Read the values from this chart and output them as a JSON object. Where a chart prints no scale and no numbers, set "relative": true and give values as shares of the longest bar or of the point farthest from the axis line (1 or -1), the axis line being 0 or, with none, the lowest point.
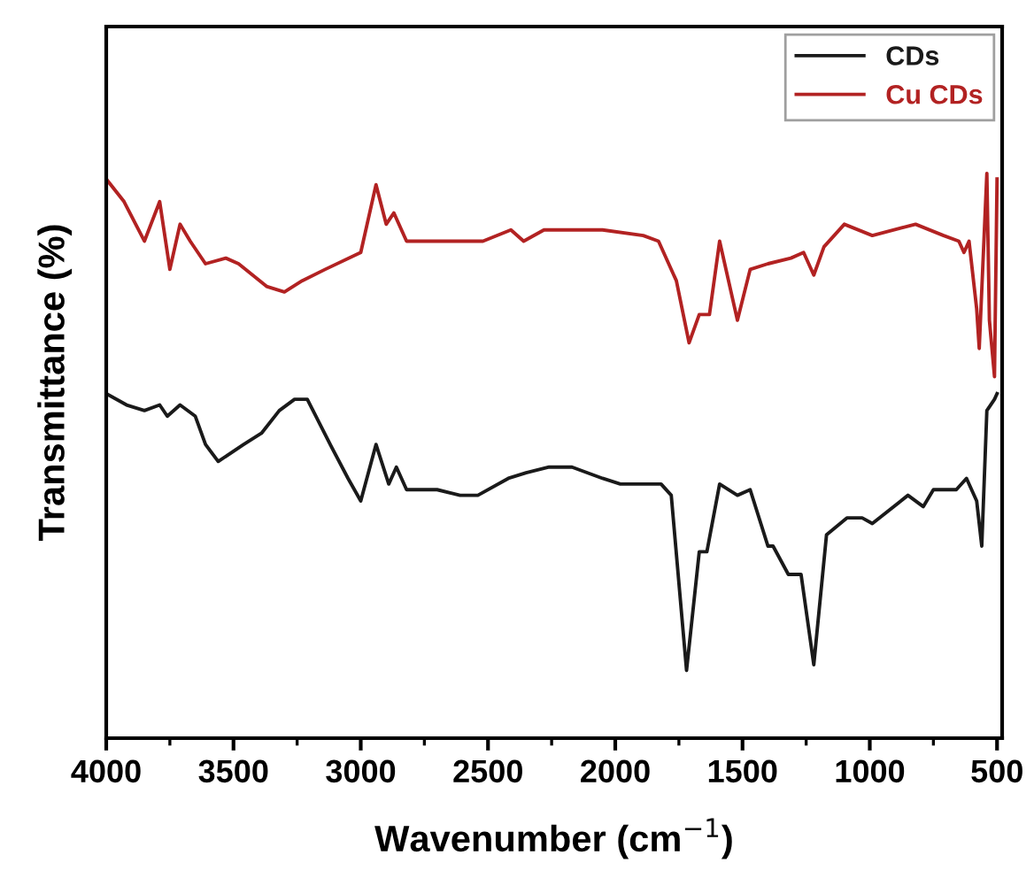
{
  "chart_data": {
    "type": "line",
    "relative": true,
    "xlabel": "Wavenumber (cm$^{−1}$)",
    "ylabel": "Transmittance (%)",
    "xlim": [
      4000,
      480
    ],
    "xticks": [
      4000,
      3500,
      3000,
      2500,
      2000,
      1500,
      1000,
      500
    ],
    "tick_labels": "x",
    "grid": false,
    "legend": "top right",
    "series": [
      {
        "name": "CDs",
        "color": "#1a1a1a",
        "x": [
          4000,
          3920,
          3850,
          3790,
          3760,
          3710,
          3650,
          3610,
          3560,
          3460,
          3390,
          3320,
          3260,
          3210,
          3120,
          3050,
          3000,
          2940,
          2890,
          2860,
          2820,
          2700,
          2610,
          2540,
          2420,
          2350,
          2260,
          2170,
          2050,
          1980,
          1820,
          1780,
          1720,
          1670,
          1640,
          1590,
          1520,
          1470,
          1400,
          1380,
          1320,
          1270,
          1220,
          1170,
          1090,
          1030,
          990,
          850,
          790,
          750,
          660,
          620,
          580,
          560,
          540,
          510,
          500
        ],
        "values": [
          0.61,
          0.59,
          0.58,
          0.59,
          0.57,
          0.59,
          0.57,
          0.52,
          0.49,
          0.52,
          0.54,
          0.58,
          0.6,
          0.6,
          0.52,
          0.46,
          0.42,
          0.52,
          0.45,
          0.48,
          0.44,
          0.44,
          0.43,
          0.43,
          0.46,
          0.47,
          0.48,
          0.48,
          0.46,
          0.45,
          0.45,
          0.43,
          0.12,
          0.33,
          0.33,
          0.45,
          0.43,
          0.44,
          0.34,
          0.34,
          0.29,
          0.29,
          0.13,
          0.36,
          0.39,
          0.39,
          0.38,
          0.43,
          0.41,
          0.44,
          0.44,
          0.46,
          0.42,
          0.34,
          0.58,
          0.6,
          0.61
        ]
      },
      {
        "name": "Cu CDs",
        "color": "#b22222",
        "x": [
          4000,
          3930,
          3850,
          3790,
          3750,
          3710,
          3670,
          3610,
          3530,
          3480,
          3370,
          3300,
          3230,
          3140,
          3000,
          2940,
          2900,
          2870,
          2820,
          2630,
          2520,
          2410,
          2360,
          2280,
          2170,
          2050,
          1890,
          1830,
          1760,
          1710,
          1670,
          1630,
          1590,
          1520,
          1470,
          1400,
          1310,
          1260,
          1220,
          1180,
          1100,
          990,
          820,
          710,
          650,
          630,
          610,
          580,
          570,
          540,
          530,
          510,
          500
        ],
        "values": [
          0.99,
          0.95,
          0.88,
          0.95,
          0.83,
          0.91,
          0.88,
          0.84,
          0.85,
          0.84,
          0.8,
          0.79,
          0.81,
          0.83,
          0.86,
          0.98,
          0.91,
          0.93,
          0.88,
          0.88,
          0.88,
          0.9,
          0.88,
          0.9,
          0.9,
          0.9,
          0.89,
          0.88,
          0.81,
          0.7,
          0.75,
          0.75,
          0.88,
          0.74,
          0.83,
          0.84,
          0.85,
          0.86,
          0.82,
          0.87,
          0.91,
          0.89,
          0.91,
          0.89,
          0.88,
          0.86,
          0.88,
          0.76,
          0.69,
          1.0,
          0.74,
          0.64,
          0.99
        ]
      }
    ]
  }
}
